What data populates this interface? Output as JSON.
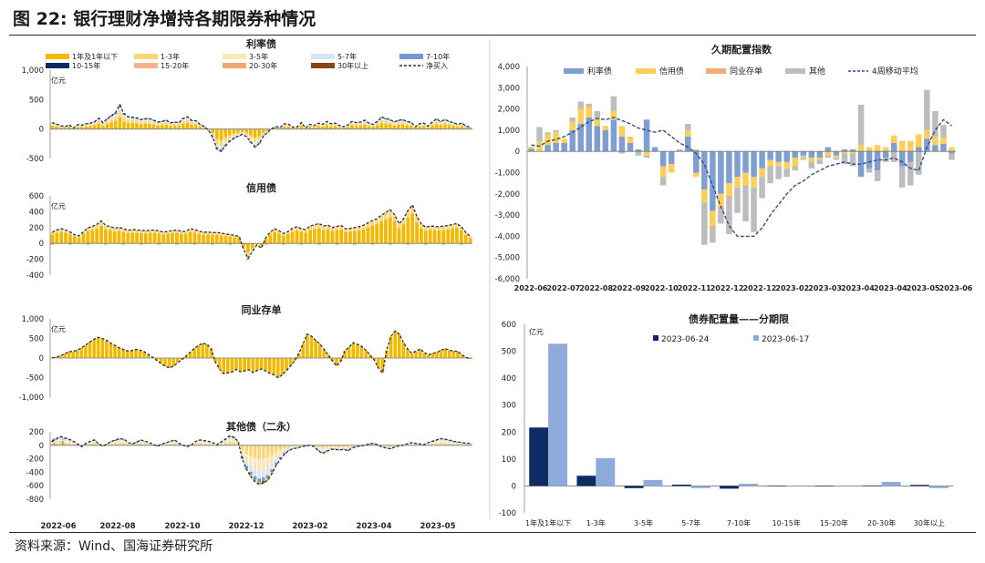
{
  "figure": {
    "title": "图 22:  银行理财净增持各期限券种情况",
    "source": "资料来源：Wind、国海证券研究所"
  },
  "colors": {
    "rate_bond": "#7f9fd3",
    "credit_bond": "#fdcf58",
    "ncd": "#f3ab78",
    "other": "#bdbdbd",
    "ma": "#2f4d8f",
    "navy": "#0e2b63",
    "light_blue": "#8eaadb",
    "m1": "#f5b800",
    "m13": "#fad57a",
    "m35": "#fbe7b4",
    "m57": "#dae5f4",
    "m710": "#7496d2",
    "m1015": "#102a60",
    "m1520": "#f7b48c",
    "m2030": "#efa86e",
    "m30": "#8b4513",
    "net": "#1f2e4d"
  },
  "left_legend": [
    {
      "label": "1年及1年以下",
      "color": "#f5b800",
      "type": "bar"
    },
    {
      "label": "1-3年",
      "color": "#fad57a",
      "type": "bar"
    },
    {
      "label": "3-5年",
      "color": "#fbe7b4",
      "type": "bar"
    },
    {
      "label": "5-7年",
      "color": "#dae5f4",
      "type": "bar"
    },
    {
      "label": "7-10年",
      "color": "#7496d2",
      "type": "bar"
    },
    {
      "label": "10-15年",
      "color": "#102a60",
      "type": "bar"
    },
    {
      "label": "15-20年",
      "color": "#f7b48c",
      "type": "bar"
    },
    {
      "label": "20-30年",
      "color": "#efa86e",
      "type": "bar"
    },
    {
      "label": "30年以上",
      "color": "#8b4513",
      "type": "bar"
    },
    {
      "label": "净买入",
      "color": "#1f2e4d",
      "type": "dash"
    }
  ],
  "left_x_ticks": [
    "2022-06",
    "2022-08",
    "2022-10",
    "2022-12",
    "2023-02",
    "2023-04",
    "2023-05"
  ],
  "right_top_legend": [
    {
      "label": "利率债",
      "color": "#7f9fd3",
      "type": "bar"
    },
    {
      "label": "信用债",
      "color": "#fdcf58",
      "type": "bar"
    },
    {
      "label": "同业存单",
      "color": "#f3ab78",
      "type": "bar"
    },
    {
      "label": "其他",
      "color": "#bdbdbd",
      "type": "bar"
    },
    {
      "label": "4周移动平均",
      "color": "#2f4d8f",
      "type": "dash"
    }
  ],
  "right_top_x_ticks": [
    "2022-06",
    "2022-07",
    "2022-08",
    "2022-09",
    "2022-10",
    "2022-11",
    "2022-12",
    "2022-12",
    "2023-02",
    "2023-03",
    "2023-04",
    "2023-04",
    "2023-05",
    "2023-06"
  ],
  "chart_data": [
    {
      "type": "bar",
      "title": "利率债",
      "unit": "亿元",
      "ylim": [
        -500,
        1000
      ],
      "yticks": [
        "1,000",
        "500",
        "0",
        "-500"
      ],
      "net_buy": [
        110,
        85,
        60,
        40,
        70,
        20,
        75,
        65,
        90,
        100,
        125,
        180,
        110,
        175,
        225,
        280,
        410,
        260,
        210,
        200,
        190,
        160,
        175,
        180,
        150,
        120,
        130,
        150,
        105,
        120,
        110,
        180,
        210,
        150,
        140,
        80,
        45,
        -20,
        -140,
        -340,
        -380,
        -280,
        -210,
        -160,
        -120,
        -90,
        -130,
        -220,
        -300,
        -250,
        -120,
        -60,
        10,
        40,
        30,
        90,
        80,
        30,
        40,
        110,
        20,
        80,
        60,
        100,
        80,
        130,
        90,
        100,
        60,
        40,
        70,
        130,
        110,
        120,
        150,
        100,
        80,
        130,
        200,
        180,
        160,
        120,
        150,
        160,
        130,
        110,
        40,
        90,
        100,
        50,
        120,
        170,
        130,
        160,
        130,
        110,
        80,
        100,
        50,
        30
      ]
    },
    {
      "type": "bar",
      "title": "信用债",
      "unit": "亿元",
      "ylim": [
        -400,
        600
      ],
      "yticks": [
        "600",
        "400",
        "200",
        "0",
        "-200",
        "-400"
      ],
      "net_buy": [
        140,
        170,
        185,
        170,
        145,
        110,
        95,
        150,
        195,
        215,
        240,
        285,
        225,
        215,
        190,
        205,
        185,
        165,
        175,
        170,
        165,
        160,
        165,
        170,
        155,
        145,
        150,
        165,
        165,
        155,
        150,
        185,
        175,
        155,
        140,
        145,
        135,
        140,
        130,
        120,
        110,
        100,
        90,
        -70,
        -190,
        -100,
        -20,
        -60,
        70,
        140,
        185,
        160,
        125,
        150,
        190,
        210,
        185,
        175,
        220,
        235,
        250,
        220,
        230,
        200,
        215,
        225,
        185,
        190,
        200,
        210,
        230,
        260,
        290,
        310,
        355,
        390,
        425,
        360,
        245,
        310,
        415,
        485,
        340,
        245,
        205,
        220,
        215,
        210,
        220,
        225,
        240,
        250,
        210,
        140,
        85
      ]
    },
    {
      "type": "bar",
      "title": "同业存单",
      "unit": "亿元",
      "ylim": [
        -1000,
        1000
      ],
      "yticks": [
        "1,000",
        "500",
        "0",
        "-500",
        "-1,000"
      ],
      "net_buy": [
        10,
        20,
        60,
        110,
        160,
        170,
        200,
        260,
        330,
        410,
        480,
        530,
        500,
        450,
        380,
        320,
        260,
        220,
        180,
        190,
        220,
        200,
        160,
        90,
        20,
        -60,
        -140,
        -210,
        -250,
        -210,
        -120,
        -40,
        50,
        150,
        250,
        320,
        380,
        350,
        240,
        -100,
        -280,
        -400,
        -380,
        -360,
        -290,
        -350,
        -330,
        -300,
        -370,
        -320,
        -280,
        -330,
        -390,
        -430,
        -500,
        -430,
        -320,
        -200,
        -70,
        120,
        360,
        610,
        560,
        450,
        360,
        220,
        80,
        -70,
        -200,
        -90,
        190,
        280,
        390,
        350,
        300,
        200,
        80,
        -50,
        -250,
        -380,
        200,
        550,
        690,
        610,
        390,
        230,
        120,
        180,
        230,
        140,
        80,
        120,
        140,
        200,
        240,
        200,
        180,
        170,
        80,
        20,
        -20
      ]
    },
    {
      "type": "bar",
      "title": "其他债（二永）",
      "unit": "亿元",
      "ylim": [
        -800,
        200
      ],
      "yticks": [
        "200",
        "0",
        "-200",
        "-400",
        "-600",
        "-800"
      ],
      "net_buy": [
        60,
        100,
        130,
        110,
        90,
        60,
        20,
        -20,
        30,
        60,
        80,
        20,
        -10,
        20,
        60,
        80,
        100,
        90,
        40,
        20,
        50,
        80,
        60,
        40,
        10,
        -10,
        20,
        40,
        60,
        80,
        30,
        0,
        -20,
        10,
        60,
        80,
        70,
        60,
        40,
        10,
        50,
        90,
        140,
        120,
        60,
        -200,
        -360,
        -460,
        -540,
        -580,
        -560,
        -520,
        -420,
        -300,
        -210,
        -130,
        -80,
        -50,
        -40,
        -20,
        -10,
        0,
        -20,
        -80,
        -120,
        -90,
        -60,
        -60,
        -70,
        -60,
        -80,
        -40,
        -20,
        -10,
        0,
        20,
        30,
        10,
        -20,
        -40,
        -50,
        -30,
        -10,
        0,
        20,
        40,
        30,
        20,
        10,
        40,
        60,
        80,
        100,
        90,
        80,
        60,
        50,
        40,
        30,
        30
      ]
    },
    {
      "type": "bar+line",
      "title": "久期配置指数",
      "ylim": [
        -6000,
        4000
      ],
      "yticks": [
        "4,000",
        "3,000",
        "2,000",
        "1,000",
        "0",
        "-1,000",
        "-2,000",
        "-3,000",
        "-4,000",
        "-5,000",
        "-6,000"
      ],
      "series": [
        {
          "name": "利率债",
          "values": [
            120,
            0,
            300,
            400,
            400,
            1000,
            1300,
            1600,
            1200,
            1000,
            1500,
            700,
            400,
            100,
            1500,
            200,
            -700,
            -600,
            0,
            700,
            -1000,
            -1800,
            -2800,
            -2000,
            -1500,
            -1200,
            -1000,
            -1200,
            -800,
            -400,
            -500,
            -500,
            -300,
            -200,
            -300,
            -300,
            200,
            -200,
            100,
            100,
            -1200,
            -800,
            -900,
            -300,
            400,
            -700,
            -500,
            200,
            600,
            300,
            350,
            -100
          ]
        },
        {
          "name": "信用债",
          "values": [
            100,
            450,
            500,
            500,
            200,
            400,
            700,
            500,
            300,
            200,
            400,
            500,
            300,
            0,
            -200,
            0,
            -500,
            -400,
            0,
            300,
            -200,
            -600,
            -700,
            -600,
            -600,
            -500,
            -600,
            -500,
            -400,
            -300,
            -200,
            -300,
            -400,
            -100,
            -200,
            -100,
            -200,
            -100,
            -100,
            -100,
            300,
            200,
            300,
            200,
            350,
            500,
            500,
            600,
            400,
            400,
            300,
            200
          ]
        },
        {
          "name": "同业存单",
          "values": [
            0,
            0,
            0,
            0,
            0,
            0,
            50,
            50,
            0,
            0,
            0,
            0,
            0,
            0,
            0,
            0,
            0,
            0,
            0,
            0,
            0,
            0,
            -100,
            -100,
            -100,
            0,
            0,
            0,
            0,
            0,
            0,
            0,
            0,
            0,
            0,
            0,
            0,
            0,
            0,
            0,
            0,
            0,
            0,
            0,
            0,
            0,
            0,
            0,
            0,
            0,
            0,
            0
          ]
        },
        {
          "name": "其他",
          "values": [
            0,
            700,
            100,
            100,
            0,
            200,
            300,
            100,
            400,
            0,
            700,
            -100,
            0,
            -200,
            -100,
            0,
            -400,
            0,
            100,
            300,
            100,
            -2000,
            -700,
            -700,
            -1700,
            -1200,
            -1700,
            -2100,
            -1000,
            -800,
            -600,
            -400,
            -200,
            -100,
            -300,
            -200,
            -100,
            -100,
            -500,
            -600,
            1900,
            -200,
            -500,
            -200,
            -500,
            -1000,
            -1100,
            -1100,
            1900,
            1200,
            600,
            -300
          ]
        },
        {
          "name": "4周移动平均",
          "values": [
            300,
            250,
            480,
            560,
            700,
            900,
            1150,
            1400,
            1550,
            1500,
            1600,
            1450,
            1300,
            1100,
            1000,
            900,
            1000,
            700,
            400,
            200,
            -100,
            -600,
            -1600,
            -2600,
            -3500,
            -4000,
            -4000,
            -4000,
            -3600,
            -3000,
            -2500,
            -2000,
            -1600,
            -1400,
            -1100,
            -900,
            -700,
            -600,
            -500,
            -600,
            -600,
            -500,
            -400,
            -400,
            -300,
            -500,
            -800,
            -900,
            200,
            1000,
            1500,
            1200
          ]
        }
      ]
    },
    {
      "type": "bar",
      "title": "债券配置量——分期限",
      "unit": "亿元",
      "ylim": [
        -100,
        600
      ],
      "yticks": [
        "600",
        "500",
        "400",
        "300",
        "200",
        "100",
        "0",
        "-100"
      ],
      "categories": [
        "1年及1年以下",
        "1-3年",
        "3-5年",
        "5-7年",
        "7-10年",
        "10-15年",
        "15-20年",
        "20-30年",
        "30年以上"
      ],
      "series": [
        {
          "name": "2023-06-24",
          "values": [
            217,
            38,
            -8,
            5,
            -10,
            0,
            0,
            2,
            4
          ]
        },
        {
          "name": "2023-06-17",
          "values": [
            528,
            103,
            22,
            -8,
            8,
            0,
            0,
            15,
            -8
          ]
        }
      ]
    }
  ]
}
